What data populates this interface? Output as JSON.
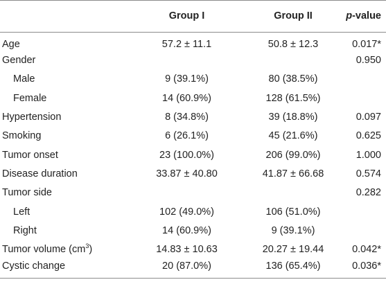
{
  "table": {
    "headers": {
      "group1": "Group I",
      "group2": "Group II",
      "p_italic": "p",
      "p_suffix": "-value"
    },
    "rows": [
      {
        "label": "Age",
        "g1": "57.2 ± 11.1",
        "g2": "50.8 ± 12.3",
        "p": "0.017*",
        "sub": false
      },
      {
        "label": "Gender",
        "g1": "",
        "g2": "",
        "p": "0.950",
        "sub": false
      },
      {
        "label": "Male",
        "g1": "9 (39.1%)",
        "g2": "80 (38.5%)",
        "p": "",
        "sub": true
      },
      {
        "label": "Female",
        "g1": "14 (60.9%)",
        "g2": "128 (61.5%)",
        "p": "",
        "sub": true
      },
      {
        "label": "Hypertension",
        "g1": "8 (34.8%)",
        "g2": "39 (18.8%)",
        "p": "0.097",
        "sub": false
      },
      {
        "label": "Smoking",
        "g1": "6 (26.1%)",
        "g2": "45 (21.6%)",
        "p": "0.625",
        "sub": false
      },
      {
        "label": "Tumor onset",
        "g1": "23 (100.0%)",
        "g2": "206 (99.0%)",
        "p": "1.000",
        "sub": false
      },
      {
        "label": "Disease duration",
        "g1": "33.87 ± 40.80",
        "g2": "41.87 ± 66.68",
        "p": "0.574",
        "sub": false
      },
      {
        "label": "Tumor side",
        "g1": "",
        "g2": "",
        "p": "0.282",
        "sub": false
      },
      {
        "label": "Left",
        "g1": "102 (49.0%)",
        "g2": "106 (51.0%)",
        "p": "",
        "sub": true
      },
      {
        "label": "Right",
        "g1": "14 (60.9%)",
        "g2": "9 (39.1%)",
        "p": "",
        "sub": true
      },
      {
        "label": "Tumor volume (cm",
        "label_sup": "3",
        "label_after": ")",
        "g1": "14.83 ± 10.63",
        "g2": "20.27 ± 19.44",
        "p": "0.042*",
        "sub": false
      },
      {
        "label": "Cystic change",
        "g1": "20 (87.0%)",
        "g2": "136 (65.4%)",
        "p": "0.036*",
        "sub": false
      }
    ]
  }
}
